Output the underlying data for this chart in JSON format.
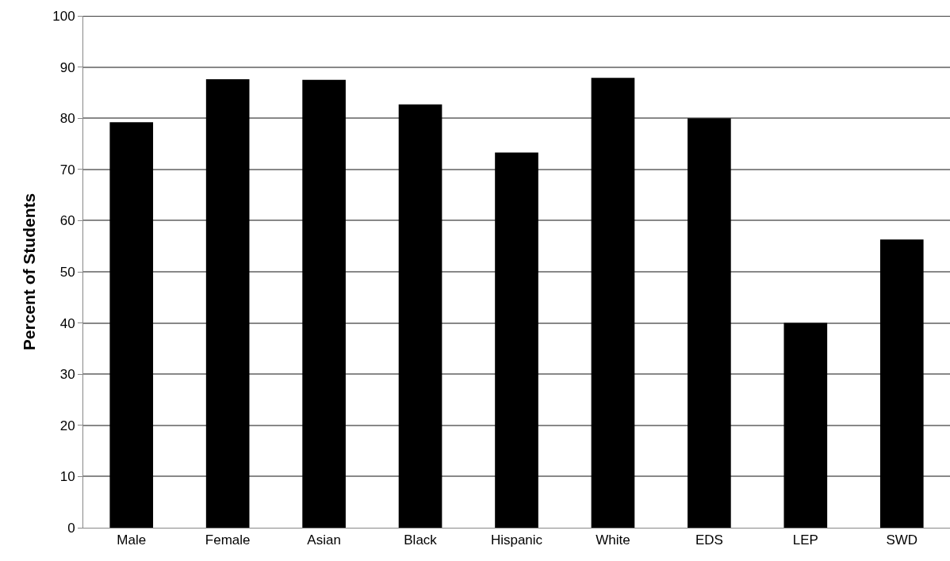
{
  "chart_data": {
    "type": "bar",
    "ylabel": "Percent of Students",
    "categories": [
      "Male",
      "Female",
      "Asian",
      "Black",
      "Hispanic",
      "White",
      "EDS",
      "LEP",
      "SWD"
    ],
    "values": [
      79.2,
      87.6,
      87.5,
      82.7,
      73.3,
      87.9,
      80,
      40,
      56.3
    ],
    "color": "#000000",
    "ylim": [
      0,
      100
    ],
    "yticks": [
      0,
      10,
      20,
      30,
      40,
      50,
      60,
      70,
      80,
      90,
      100
    ],
    "grid": "y"
  }
}
